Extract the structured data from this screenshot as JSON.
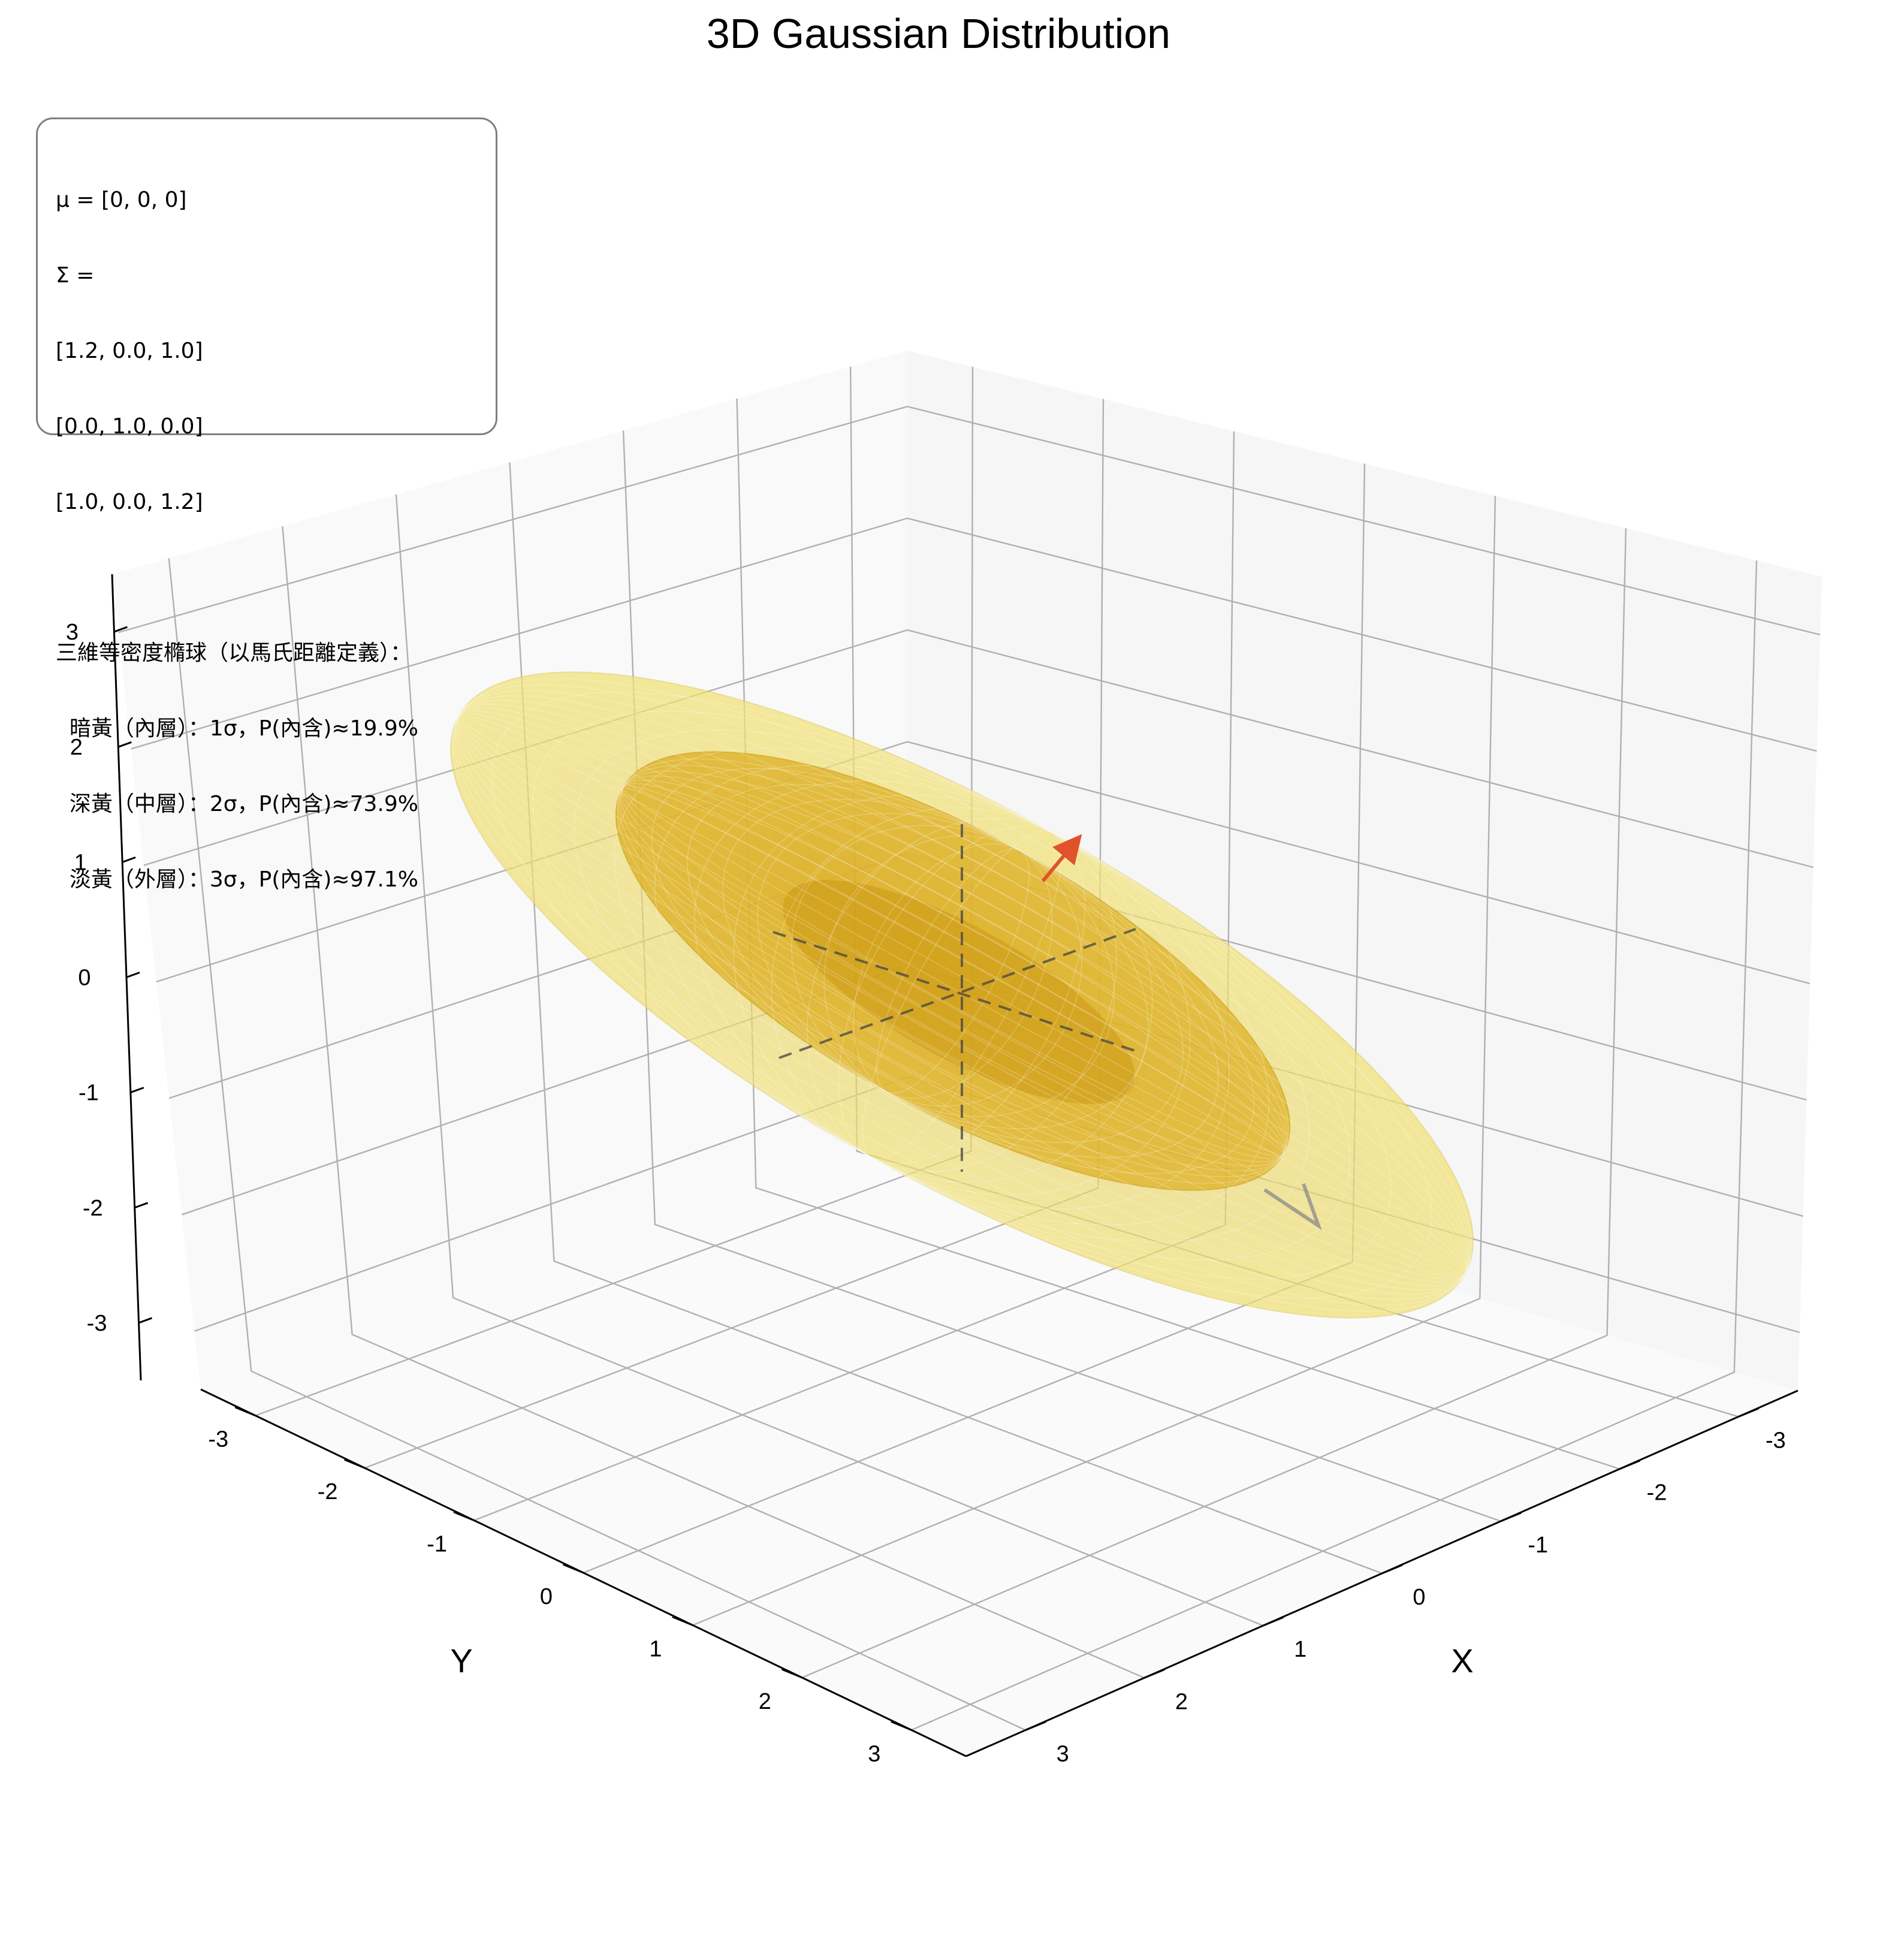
{
  "chart_data": {
    "type": "3d-ellipsoid",
    "title": "3D Gaussian Distribution",
    "xlabel": "X",
    "ylabel": "Y",
    "zlabel": "",
    "xlim": [
      -3.5,
      3.5
    ],
    "ylim": [
      -3.5,
      3.5
    ],
    "zlim": [
      -3.5,
      3.5
    ],
    "xticks": [
      "-3",
      "-2",
      "-1",
      "0",
      "1",
      "2",
      "3"
    ],
    "yticks": [
      "-3",
      "-2",
      "-1",
      "0",
      "1",
      "2",
      "3"
    ],
    "zticks": [
      "-3",
      "-2",
      "-1",
      "0",
      "1",
      "2",
      "3"
    ],
    "mean": [
      0,
      0,
      0
    ],
    "covariance": [
      [
        1.2,
        0.0,
        1.0
      ],
      [
        0.0,
        1.0,
        0.0
      ],
      [
        1.0,
        0.0,
        1.2
      ]
    ],
    "grid": true,
    "series": [
      {
        "name": "暗黃（內層）",
        "sigma": 1,
        "probability": 0.199,
        "color": "#b8860b"
      },
      {
        "name": "深黃（中層）",
        "sigma": 2,
        "probability": 0.739,
        "color": "#daa520"
      },
      {
        "name": "淡黃（外層）",
        "sigma": 3,
        "probability": 0.971,
        "color": "#f0e68c"
      }
    ],
    "annotation": [
      "μ = [0, 0, 0]",
      "Σ =",
      "[1.2, 0.0, 1.0]",
      "[0.0, 1.0, 0.0]",
      "[1.0, 0.0, 1.2]",
      "",
      "三維等密度橢球（以馬氏距離定義）：",
      "  暗黃（內層）：1σ，P(內含)≈19.9%",
      "  深黃（中層）：2σ，P(內含)≈73.9%",
      "  淡黃（外層）：3σ，P(內含)≈97.1%"
    ]
  }
}
